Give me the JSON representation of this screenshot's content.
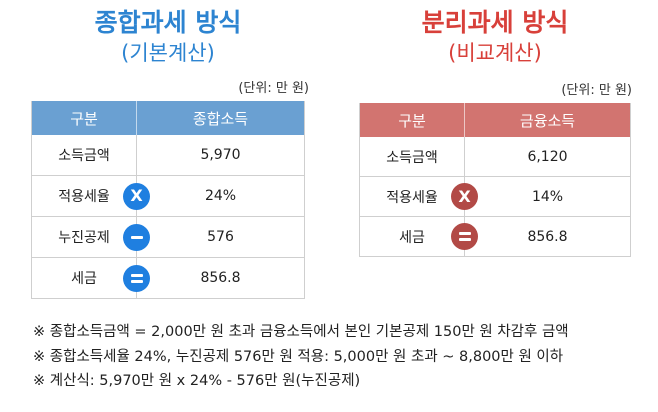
{
  "left": {
    "title": "종합과세 방식",
    "subtitle": "(기본계산)",
    "unit": "(단위: 만 원)",
    "header": [
      "구분",
      "종합소득"
    ],
    "rows": [
      {
        "label": "소득금액",
        "value": "5,970",
        "op": ""
      },
      {
        "label": "적용세율",
        "value": "24%",
        "op": "X"
      },
      {
        "label": "누진공제",
        "value": "576",
        "op": "-"
      },
      {
        "label": "세금",
        "value": "856.8",
        "op": "="
      }
    ]
  },
  "right": {
    "title": "분리과세 방식",
    "subtitle": "(비교계산)",
    "unit": "(단위: 만 원)",
    "header": [
      "구분",
      "금융소득"
    ],
    "rows": [
      {
        "label": "소득금액",
        "value": "6,120",
        "op": ""
      },
      {
        "label": "적용세율",
        "value": "14%",
        "op": "X"
      },
      {
        "label": "세금",
        "value": "856.8",
        "op": "="
      }
    ]
  },
  "notes": [
    "※ 종합소득금액 = 2,000만 원 초과 금융소득에서 본인 기본공제 150만 원 차감후 금액",
    "※ 종합소득세율 24%, 누진공제 576만 원 적용: 5,000만 원 초과 ~ 8,800만 원 이하",
    "※ 계산식: 5,970만 원 x 24% - 576만 원(누진공제)"
  ],
  "colors": {
    "left_accent": "#2d84d1",
    "left_header": "#6aa0d2",
    "left_operator": "#1f7fe0",
    "right_accent": "#d8403a",
    "right_header": "#d27470",
    "right_operator": "#b24a46"
  },
  "icons": {
    "X": "multiply-icon",
    "-": "minus-icon",
    "=": "equals-icon"
  }
}
